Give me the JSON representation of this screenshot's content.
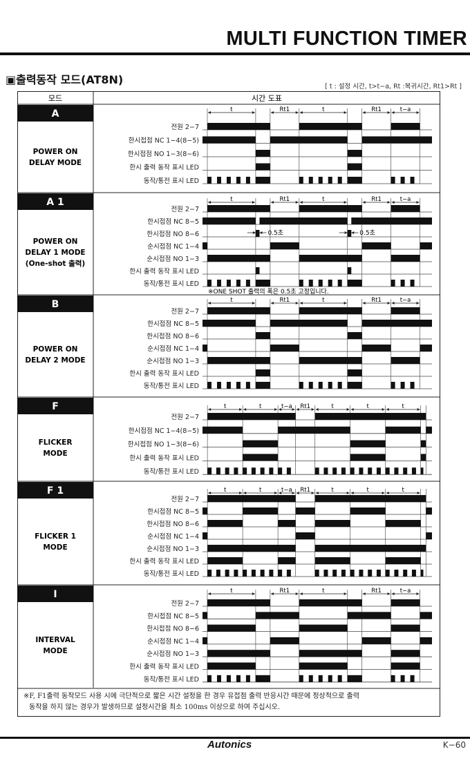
{
  "header": {
    "doc_title": "MULTI FUNCTION TIMER",
    "section_title": "▣출력동작 모드(AT8N)",
    "legend": "[ t : 설정 시간,  t>t−a, Rt :복귀시간, Rt1>Rt ]"
  },
  "table": {
    "col_mode": "모드",
    "col_chart": "시간 도표"
  },
  "modes": [
    {
      "code": "A",
      "name": [
        "POWER ON",
        "DELAY MODE"
      ],
      "dims": [
        [
          "t",
          1,
          11
        ],
        [
          "Rt1",
          14,
          20
        ],
        [
          "t",
          20,
          30
        ],
        [
          "Rt1",
          33,
          39
        ],
        [
          "t−a",
          39,
          45
        ]
      ],
      "domain": [
        0,
        47.5
      ],
      "signals": [
        {
          "label": "전원  2−7",
          "high": [
            [
              1,
              14
            ],
            [
              20,
              33
            ],
            [
              39,
              45
            ]
          ]
        },
        {
          "label": "한시접점 NC  1−4(8−5)",
          "high": [
            [
              0,
              11
            ],
            [
              14,
              30
            ],
            [
              33,
              47.5
            ]
          ]
        },
        {
          "label": "한시접점 NO  1−3(8−6)",
          "high": [
            [
              11,
              14
            ],
            [
              30,
              33
            ]
          ]
        },
        {
          "label": "한시 출력 동작 표시 LED",
          "high": [
            [
              11,
              14
            ],
            [
              30,
              33
            ]
          ]
        },
        {
          "label": "동작/통전 표시 LED",
          "high": [
            [
              11,
              14
            ],
            [
              30,
              33
            ]
          ],
          "blink": [
            [
              1,
              11,
              5
            ],
            [
              20,
              30,
              5
            ],
            [
              39,
              45,
              3
            ]
          ]
        }
      ]
    },
    {
      "code": "A 1",
      "name": [
        "POWER ON",
        "DELAY 1 MODE",
        "(One-shot 출력)"
      ],
      "dims": [
        [
          "t",
          1,
          11
        ],
        [
          "Rt1",
          14,
          20
        ],
        [
          "t",
          20,
          30
        ],
        [
          "Rt1",
          33,
          39
        ],
        [
          "t−a",
          39,
          45
        ]
      ],
      "domain": [
        0,
        47.5
      ],
      "oneshot_label": "0.5초",
      "oneshot": [
        [
          11,
          11.8
        ],
        [
          30,
          30.8
        ]
      ],
      "footnote": "※ONE SHOT 출력의 폭은 0.5초 고정입니다.",
      "signals": [
        {
          "label": "전원  2−7",
          "high": [
            [
              1,
              14
            ],
            [
              20,
              33
            ],
            [
              39,
              45
            ]
          ]
        },
        {
          "label": "한시접점 NC 8−5",
          "high": [
            [
              0,
              11
            ],
            [
              11.8,
              30
            ],
            [
              30.8,
              47.5
            ]
          ]
        },
        {
          "label": "한시접점 NO 8−6",
          "high": [
            [
              11,
              11.8
            ],
            [
              30,
              30.8
            ]
          ]
        },
        {
          "label": "순시접점 NC 1−4",
          "high": [
            [
              0,
              1
            ],
            [
              14,
              20
            ],
            [
              33,
              39
            ],
            [
              45,
              47.5
            ]
          ]
        },
        {
          "label": "순시접점 NO 1−3",
          "high": [
            [
              1,
              14
            ],
            [
              20,
              33
            ],
            [
              39,
              45
            ]
          ]
        },
        {
          "label": "한시 출력 동작 표시 LED",
          "high": [
            [
              11,
              11.8
            ],
            [
              30,
              30.8
            ]
          ]
        },
        {
          "label": "동작/통전 표시 LED",
          "high": [
            [
              11,
              14
            ],
            [
              30,
              33
            ]
          ],
          "blink": [
            [
              1,
              11,
              5
            ],
            [
              20,
              30,
              5
            ],
            [
              39,
              45,
              3
            ]
          ]
        }
      ]
    },
    {
      "code": "B",
      "name": [
        "POWER ON",
        "DELAY 2 MODE"
      ],
      "dims": [
        [
          "t",
          1,
          11
        ],
        [
          "Rt1",
          14,
          20
        ],
        [
          "t",
          20,
          30
        ],
        [
          "Rt1",
          33,
          39
        ],
        [
          "t−a",
          39,
          45
        ]
      ],
      "domain": [
        0,
        47.5
      ],
      "signals": [
        {
          "label": "전원  2−7",
          "high": [
            [
              1,
              14
            ],
            [
              20,
              33
            ],
            [
              39,
              45
            ]
          ]
        },
        {
          "label": "한시접점 NC 8−5",
          "high": [
            [
              0,
              11
            ],
            [
              14,
              30
            ],
            [
              33,
              47.5
            ]
          ]
        },
        {
          "label": "한시접점 NO 8−6",
          "high": [
            [
              11,
              14
            ],
            [
              30,
              33
            ]
          ]
        },
        {
          "label": "순시접점 NC 1−4",
          "high": [
            [
              0,
              1
            ],
            [
              14,
              20
            ],
            [
              33,
              39
            ],
            [
              45,
              47.5
            ]
          ]
        },
        {
          "label": "순시접점 NO 1−3",
          "high": [
            [
              1,
              14
            ],
            [
              20,
              33
            ],
            [
              39,
              45
            ]
          ]
        },
        {
          "label": "한시 출력 동작 표시 LED",
          "high": [
            [
              11,
              14
            ],
            [
              30,
              33
            ]
          ]
        },
        {
          "label": "동작/통전 표시 LED",
          "high": [
            [
              11,
              14
            ],
            [
              30,
              33
            ]
          ],
          "blink": [
            [
              1,
              11,
              5
            ],
            [
              20,
              30,
              5
            ],
            [
              39,
              45,
              3
            ]
          ]
        }
      ]
    },
    {
      "code": "F",
      "name": [
        "FLICKER",
        "MODE"
      ],
      "dims": [
        [
          "t",
          0,
          10
        ],
        [
          "t",
          10,
          20
        ],
        [
          "t−a",
          20,
          25
        ],
        [
          "Rt1",
          25,
          30.5
        ],
        [
          "t",
          30.5,
          40.5
        ],
        [
          "t",
          40.5,
          50.5
        ],
        [
          "t",
          50.5,
          60.5
        ]
      ],
      "domain": [
        -1.4,
        63.7
      ],
      "signals": [
        {
          "label": "전원  2−7",
          "high": [
            [
              0,
              25
            ],
            [
              30.5,
              62
            ]
          ]
        },
        {
          "label": "한시접점 NC  1−4(8−5)",
          "high": [
            [
              -1.4,
              10
            ],
            [
              20,
              40.5
            ],
            [
              50.5,
              60.5
            ],
            [
              62,
              63.7
            ]
          ]
        },
        {
          "label": "한시접점 NO  1−3(8−6)",
          "high": [
            [
              10,
              20
            ],
            [
              40.5,
              50.5
            ],
            [
              60.5,
              62
            ]
          ]
        },
        {
          "label": "한시 출력 동작 표시 LED",
          "high": [
            [
              10,
              20
            ],
            [
              40.5,
              50.5
            ],
            [
              60.5,
              62
            ]
          ]
        },
        {
          "label": "동작/통전 표시 LED",
          "high": [],
          "blink": [
            [
              0,
              10,
              4
            ],
            [
              10,
              20,
              4
            ],
            [
              20,
              25,
              2
            ],
            [
              30.5,
              40.5,
              4
            ],
            [
              40.5,
              50.5,
              4
            ],
            [
              50.5,
              60.5,
              4
            ],
            [
              60.5,
              62,
              1
            ]
          ]
        }
      ]
    },
    {
      "code": "F 1",
      "name": [
        "FLICKER 1",
        "MODE"
      ],
      "dims": [
        [
          "t",
          0,
          10
        ],
        [
          "t",
          10,
          20
        ],
        [
          "t−a",
          20,
          25
        ],
        [
          "Rt1",
          25,
          30.5
        ],
        [
          "t",
          30.5,
          40.5
        ],
        [
          "t",
          40.5,
          50.5
        ],
        [
          "t",
          50.5,
          60.5
        ]
      ],
      "domain": [
        -1.4,
        63.7
      ],
      "signals": [
        {
          "label": "전원  2−7",
          "high": [
            [
              0,
              25
            ],
            [
              30.5,
              62
            ]
          ]
        },
        {
          "label": "한시접점 NC 8−5",
          "high": [
            [
              -1.4,
              0
            ],
            [
              10,
              20
            ],
            [
              25,
              30.5
            ],
            [
              40.5,
              50.5
            ],
            [
              62,
              63.7
            ]
          ]
        },
        {
          "label": "한시접점 NO 8−6",
          "high": [
            [
              0,
              10
            ],
            [
              20,
              25
            ],
            [
              30.5,
              40.5
            ],
            [
              50.5,
              60.5
            ]
          ]
        },
        {
          "label": "순시접점 NC 1−4",
          "high": [
            [
              -1.4,
              0
            ],
            [
              25,
              30.5
            ],
            [
              62,
              63.7
            ]
          ]
        },
        {
          "label": "순시접점 NO 1−3",
          "high": [
            [
              0,
              25
            ],
            [
              30.5,
              62
            ]
          ]
        },
        {
          "label": "한시 출력 동작 표시 LED",
          "high": [
            [
              0,
              10
            ],
            [
              20,
              25
            ],
            [
              30.5,
              40.5
            ],
            [
              50.5,
              60.5
            ]
          ]
        },
        {
          "label": "동작/통전 표시 LED",
          "high": [],
          "blink": [
            [
              0,
              10,
              4
            ],
            [
              10,
              20,
              4
            ],
            [
              20,
              25,
              2
            ],
            [
              30.5,
              40.5,
              4
            ],
            [
              40.5,
              50.5,
              4
            ],
            [
              50.5,
              60.5,
              4
            ],
            [
              60.5,
              62,
              1
            ]
          ]
        }
      ]
    },
    {
      "code": "I",
      "name": [
        "INTERVAL",
        "MODE"
      ],
      "dims": [
        [
          "t",
          1,
          11
        ],
        [
          "Rt1",
          14,
          20
        ],
        [
          "t",
          20,
          30
        ],
        [
          "Rt1",
          33,
          39
        ],
        [
          "t−a",
          39,
          45
        ]
      ],
      "domain": [
        0,
        47.5
      ],
      "signals": [
        {
          "label": "전원  2−7",
          "high": [
            [
              1,
              14
            ],
            [
              20,
              33
            ],
            [
              39,
              45
            ]
          ]
        },
        {
          "label": "한시접점 NC 8−5",
          "high": [
            [
              0,
              1
            ],
            [
              11,
              20
            ],
            [
              30,
              39
            ],
            [
              45,
              47.5
            ]
          ]
        },
        {
          "label": "한시접점 NO 8−6",
          "high": [
            [
              1,
              11
            ],
            [
              20,
              30
            ],
            [
              39,
              45
            ]
          ]
        },
        {
          "label": "순시접점 NC 1−4",
          "high": [
            [
              0,
              1
            ],
            [
              14,
              20
            ],
            [
              33,
              39
            ],
            [
              45,
              47.5
            ]
          ]
        },
        {
          "label": "순시접점 NO 1−3",
          "high": [
            [
              1,
              14
            ],
            [
              20,
              33
            ],
            [
              39,
              45
            ]
          ]
        },
        {
          "label": "한시 출력 동작 표시 LED",
          "high": [
            [
              1,
              11
            ],
            [
              20,
              30
            ],
            [
              39,
              45
            ]
          ]
        },
        {
          "label": "동작/통전 표시 LED",
          "high": [
            [
              11,
              14
            ],
            [
              30,
              33
            ]
          ],
          "blink": [
            [
              1,
              11,
              5
            ],
            [
              20,
              30,
              5
            ],
            [
              39,
              45,
              3
            ]
          ]
        }
      ]
    }
  ],
  "note": [
    "※F, F1출력 동작모드 사용 시에 극단적으로 짧은 시간 설정을 한 경우 유접점 출력 반응시간 때문에 정상적으로 출력",
    "동작을 하지 않는 경우가 발생하므로 설정시간을 최소 100ms 이상으로 하여 주십시오."
  ],
  "footer": {
    "brand": "Autonics",
    "page": "K−60"
  }
}
